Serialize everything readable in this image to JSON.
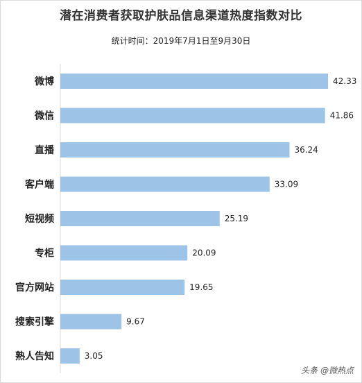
{
  "chart_data": {
    "type": "bar",
    "orientation": "horizontal",
    "title": "潜在消费者获取护肤品信息渠道热度指数对比",
    "subtitle": "统计时间：2019年7月1日至9月30日",
    "categories": [
      "微博",
      "微信",
      "直播",
      "客户端",
      "短视频",
      "专柜",
      "官方网站",
      "搜索引擎",
      "熟人告知"
    ],
    "values": [
      42.33,
      41.86,
      36.24,
      33.09,
      25.19,
      20.09,
      19.65,
      9.67,
      3.05
    ],
    "value_labels": [
      "42.33",
      "41.86",
      "36.24",
      "33.09",
      "25.19",
      "20.09",
      "19.65",
      "9.67",
      "3.05"
    ],
    "xlim": [
      0,
      42.33
    ],
    "grid": false,
    "legend": "none",
    "bar_color": "#9dc3e6"
  },
  "watermark": "头条 @微热点"
}
